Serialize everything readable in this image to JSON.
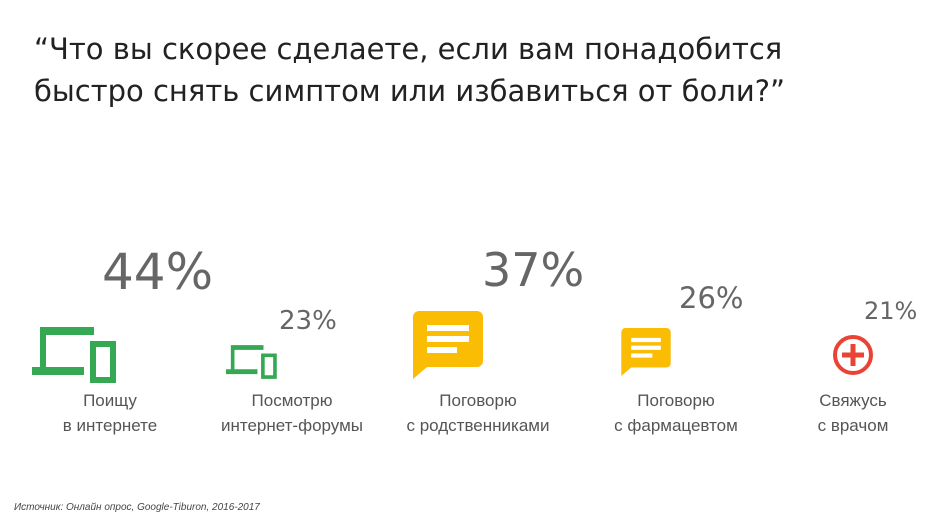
{
  "title": {
    "line1": "“Что вы скорее сделаете, если вам понадобится",
    "line2": "быстро снять симптом или избавиться от боли?”"
  },
  "colors": {
    "green": "#34A853",
    "yellow": "#FBBC04",
    "red": "#EA4335",
    "text": "#555555"
  },
  "chart_data": {
    "type": "bar",
    "categories": [
      "Поищу в интернете",
      "Посмотрю интернет-форумы",
      "Поговорю с родственниками",
      "Поговорю с фармацевтом",
      "Свяжусь с врачом"
    ],
    "values": [
      44,
      23,
      37,
      26,
      21
    ],
    "unit": "%",
    "items": [
      {
        "value_label": "44%",
        "label_line1": "Поищу",
        "label_line2": "в интернете",
        "icon": "devices-icon"
      },
      {
        "value_label": "23%",
        "label_line1": "Посмотрю",
        "label_line2": "интернет-форумы",
        "icon": "devices-icon"
      },
      {
        "value_label": "37%",
        "label_line1": "Поговорю",
        "label_line2": "с родственниками",
        "icon": "chat-bubble-icon"
      },
      {
        "value_label": "26%",
        "label_line1": "Поговорю",
        "label_line2": "с фармацевтом",
        "icon": "chat-bubble-icon"
      },
      {
        "value_label": "21%",
        "label_line1": "Свяжусь",
        "label_line2": "с врачом",
        "icon": "medical-cross-icon"
      }
    ]
  },
  "source": "Источник: Онлайн опрос, Google-Tiburon, 2016-2017"
}
